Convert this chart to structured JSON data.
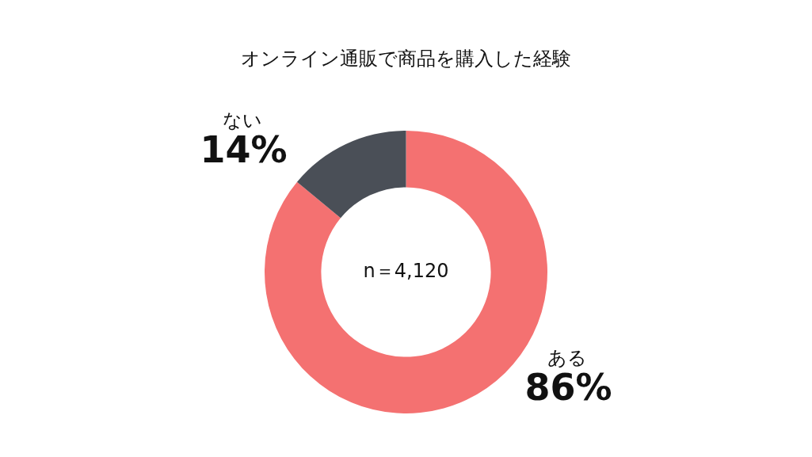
{
  "chart_data": {
    "type": "donut",
    "title": "オンライン通販で商品を購入した経験",
    "categories": [
      "ある",
      "ない"
    ],
    "values": [
      86,
      14
    ],
    "colors": [
      "#f47171",
      "#4a4f57"
    ],
    "value_labels": [
      "86%",
      "14%"
    ],
    "legend": false,
    "annotations": [
      "n＝4,120"
    ]
  }
}
